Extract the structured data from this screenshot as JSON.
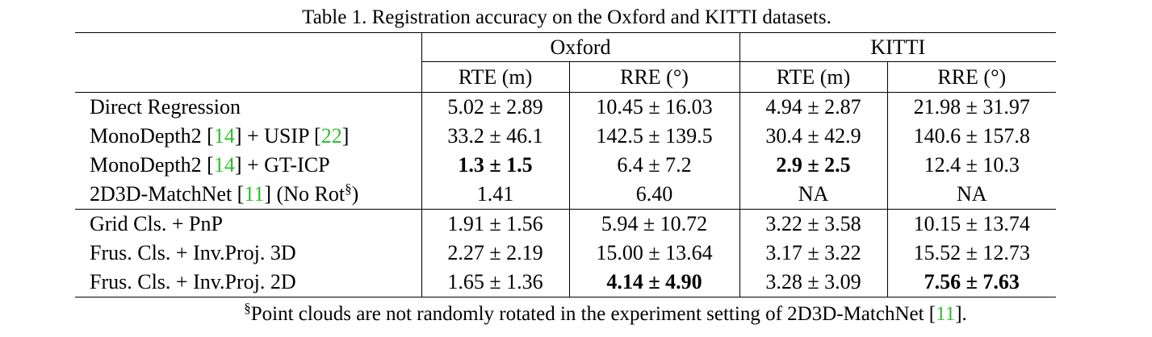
{
  "caption": "Table 1. Registration accuracy on the Oxford and KITTI datasets.",
  "datasets": [
    "Oxford",
    "KITTI"
  ],
  "columns": [
    "RTE (m)",
    "RRE (°)",
    "RTE (m)",
    "RRE (°)"
  ],
  "group1": [
    {
      "method": {
        "pre": "Direct Regression",
        "cite1": "",
        "mid": "",
        "cite2": "",
        "post": "",
        "sup": "",
        "tail": ""
      },
      "values": [
        "5.02 ± 2.89",
        "10.45 ± 16.03",
        "4.94 ± 2.87",
        "21.98 ± 31.97"
      ],
      "bold": [
        false,
        false,
        false,
        false
      ]
    },
    {
      "method": {
        "pre": "MonoDepth2 [",
        "cite1": "14",
        "mid": "] + USIP [",
        "cite2": "22",
        "post": "]",
        "sup": "",
        "tail": ""
      },
      "values": [
        "33.2 ± 46.1",
        "142.5 ± 139.5",
        "30.4 ± 42.9",
        "140.6 ± 157.8"
      ],
      "bold": [
        false,
        false,
        false,
        false
      ]
    },
    {
      "method": {
        "pre": "MonoDepth2 [",
        "cite1": "14",
        "mid": "] + GT-ICP",
        "cite2": "",
        "post": "",
        "sup": "",
        "tail": ""
      },
      "values": [
        "1.3 ± 1.5",
        "6.4 ± 7.2",
        "2.9 ± 2.5",
        "12.4 ± 10.3"
      ],
      "bold": [
        true,
        false,
        true,
        false
      ]
    },
    {
      "method": {
        "pre": "2D3D-MatchNet [",
        "cite1": "11",
        "mid": "] (No Rot",
        "cite2": "",
        "post": "",
        "sup": "§",
        "tail": ")"
      },
      "values": [
        "1.41",
        "6.40",
        "NA",
        "NA"
      ],
      "bold": [
        false,
        false,
        false,
        false
      ]
    }
  ],
  "group2": [
    {
      "method": {
        "pre": "Grid Cls. + PnP",
        "cite1": "",
        "mid": "",
        "cite2": "",
        "post": "",
        "sup": "",
        "tail": ""
      },
      "values": [
        "1.91 ± 1.56",
        "5.94 ± 10.72",
        "3.22 ± 3.58",
        "10.15 ± 13.74"
      ],
      "bold": [
        false,
        false,
        false,
        false
      ]
    },
    {
      "method": {
        "pre": "Frus. Cls. + Inv.Proj. 3D",
        "cite1": "",
        "mid": "",
        "cite2": "",
        "post": "",
        "sup": "",
        "tail": ""
      },
      "values": [
        "2.27 ± 2.19",
        "15.00 ± 13.64",
        "3.17 ± 3.22",
        "15.52 ± 12.73"
      ],
      "bold": [
        false,
        false,
        false,
        false
      ]
    },
    {
      "method": {
        "pre": "Frus. Cls. + Inv.Proj. 2D",
        "cite1": "",
        "mid": "",
        "cite2": "",
        "post": "",
        "sup": "",
        "tail": ""
      },
      "values": [
        "1.65 ± 1.36",
        "4.14 ± 4.90",
        "3.28 ± 3.09",
        "7.56 ± 7.63"
      ],
      "bold": [
        false,
        true,
        false,
        true
      ]
    }
  ],
  "footnote": {
    "sup": "§",
    "text": "Point clouds are not randomly rotated in the experiment setting of 2D3D-MatchNet [",
    "cite": "11",
    "end": "]."
  },
  "colors": {
    "citation": "#2fbf2f",
    "text": "#000000"
  }
}
